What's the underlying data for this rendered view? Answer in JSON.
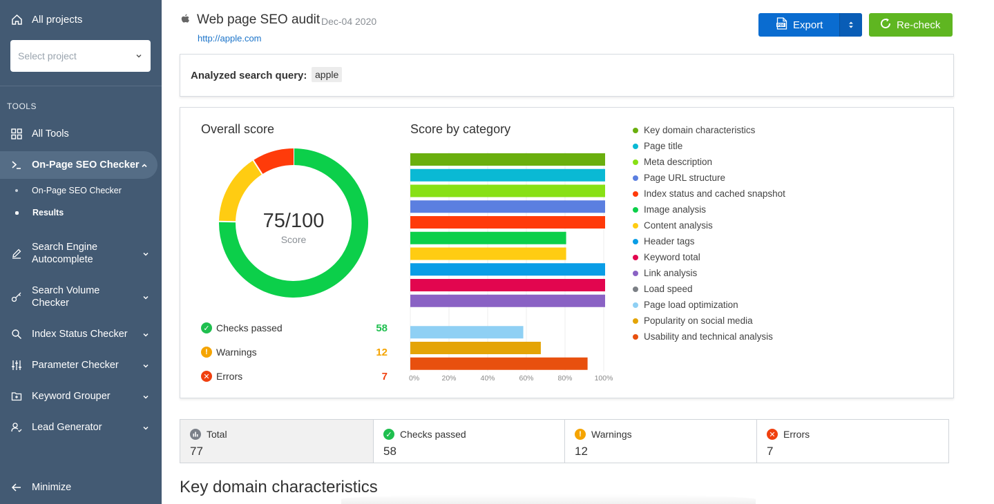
{
  "sidebar": {
    "all_projects": "All projects",
    "select_placeholder": "Select project",
    "tools_heading": "TOOLS",
    "items": [
      {
        "label": "All Tools"
      },
      {
        "label": "On-Page SEO Checker"
      },
      {
        "label": "Search Engine Autocomplete"
      },
      {
        "label": "Search Volume Checker"
      },
      {
        "label": "Index Status Checker"
      },
      {
        "label": "Parameter Checker"
      },
      {
        "label": "Keyword Grouper"
      },
      {
        "label": "Lead Generator"
      }
    ],
    "subitems": [
      {
        "label": "On-Page SEO Checker"
      },
      {
        "label": "Results"
      }
    ],
    "minimize": "Minimize"
  },
  "header": {
    "title": "Web page SEO audit",
    "date": "Dec-04 2020",
    "url": "http://apple.com",
    "export_label": "Export",
    "recheck_label": "Re-check"
  },
  "query": {
    "label": "Analyzed search query:",
    "value": "apple"
  },
  "overall": {
    "title": "Overall score",
    "score_text": "75/100",
    "score_label": "Score",
    "stats": [
      {
        "label": "Checks passed",
        "value": "58",
        "color": "#1fbf4f"
      },
      {
        "label": "Warnings",
        "value": "12",
        "color": "#f5a400"
      },
      {
        "label": "Errors",
        "value": "7",
        "color": "#f0400f"
      }
    ]
  },
  "category": {
    "title": "Score by category"
  },
  "chart_data": [
    {
      "type": "pie",
      "categories": [
        "Checks passed",
        "Warnings",
        "Errors"
      ],
      "values": [
        58,
        12,
        7
      ],
      "colors": [
        "#0ccf4a",
        "#ffcc12",
        "#ff3b0a"
      ]
    },
    {
      "type": "bar",
      "orientation": "horizontal",
      "categories": [
        "Key domain characteristics",
        "Page title",
        "Meta description",
        "Page URL structure",
        "Index status and cached snapshot",
        "Image analysis",
        "Content analysis",
        "Header tags",
        "Keyword total",
        "Link analysis",
        "Load speed",
        "Page load optimization",
        "Popularity on social media",
        "Usability and technical analysis"
      ],
      "values": [
        100,
        100,
        100,
        100,
        100,
        80,
        80,
        100,
        100,
        100,
        0,
        58,
        67,
        91
      ],
      "colors": [
        "#6aaf0e",
        "#0ab9d4",
        "#88e014",
        "#5b7fe0",
        "#ff3a0a",
        "#0ccf4a",
        "#ffcc12",
        "#0a9de6",
        "#e2064f",
        "#8a62c4",
        "#7b7f85",
        "#8fd0f4",
        "#e4a406",
        "#e8500e"
      ],
      "xlim": [
        0,
        100
      ],
      "xticks": [
        "0%",
        "20%",
        "40%",
        "60%",
        "80%",
        "100%"
      ],
      "grid": true,
      "legend": "right"
    }
  ],
  "summary": [
    {
      "label": "Total",
      "value": "77"
    },
    {
      "label": "Checks passed",
      "value": "58"
    },
    {
      "label": "Warnings",
      "value": "12"
    },
    {
      "label": "Errors",
      "value": "7"
    }
  ],
  "section_title": "Key domain characteristics"
}
